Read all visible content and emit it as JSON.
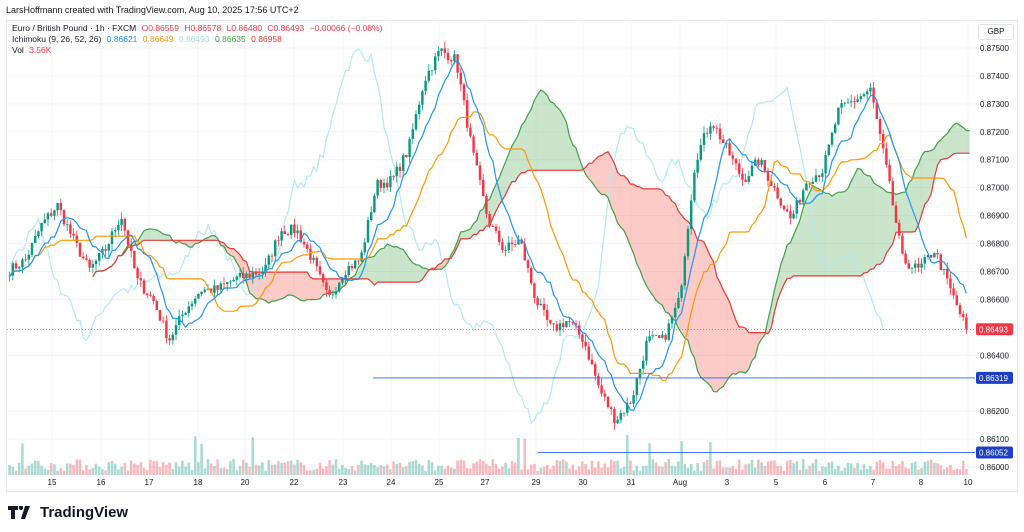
{
  "credit": "LarsHoffmann created with TradingView.com, Aug 10, 2025 17:56 UTC+2",
  "legend": {
    "symbol": "Euro / British Pound · 1h · FXCM",
    "open": "O0.86559",
    "high": "H0.86578",
    "low": "L0.86480",
    "close": "C0.86493",
    "change": "−0.00066 (−0.08%)",
    "ichimoku_label": "Ichimoku (9, 26, 52, 26)",
    "ichimoku_values": [
      "0.86621",
      "0.86649",
      "0.86493",
      "0.86635",
      "0.86958"
    ],
    "vol_label": "Vol",
    "vol_value": "3.56K"
  },
  "currency": "GBP",
  "logo": "TradingView",
  "colors": {
    "up": "#089981",
    "down": "#f23645",
    "tenkan": "#2196f3",
    "kijun": "#ff9800",
    "lagging": "#b2ebf2",
    "spanA": "#43a047",
    "spanB": "#e53935",
    "line": "#2962ff"
  },
  "chart_data": {
    "type": "line",
    "title": "Euro / British Pound · 1h · FXCM",
    "ylabel": "GBP",
    "ylim": [
      0.8597,
      0.8756
    ],
    "y_ticks": [
      "0.87500",
      "0.87400",
      "0.87300",
      "0.87200",
      "0.87100",
      "0.87000",
      "0.86900",
      "0.86800",
      "0.86700",
      "0.86600",
      "0.86400",
      "0.86200",
      "0.86100",
      "0.86000"
    ],
    "x_ticks": [
      "15",
      "16",
      "17",
      "18",
      "20",
      "22",
      "23",
      "24",
      "25",
      "27",
      "29",
      "30",
      "31",
      "Aug",
      "3",
      "5",
      "6",
      "7",
      "8",
      "10"
    ],
    "close_path": [
      0.86705,
      0.86741,
      0.86866,
      0.86938,
      0.86813,
      0.86705,
      0.86777,
      0.86902,
      0.86669,
      0.86598,
      0.86455,
      0.86562,
      0.86634,
      0.86634,
      0.86669,
      0.86687,
      0.86705,
      0.86848,
      0.86848,
      0.86741,
      0.86598,
      0.86705,
      0.86741,
      0.8701,
      0.87027,
      0.87135,
      0.87385,
      0.87493,
      0.87457,
      0.87135,
      0.86884,
      0.86777,
      0.86813,
      0.86598,
      0.8649,
      0.86526,
      0.86455,
      0.86276,
      0.86168,
      0.8624,
      0.86455,
      0.86455,
      0.86598,
      0.87099,
      0.87242,
      0.87135,
      0.87027,
      0.87099,
      0.86992,
      0.86884,
      0.87027,
      0.87063,
      0.87278,
      0.87314,
      0.8735,
      0.87063,
      0.86741,
      0.86705,
      0.86777,
      0.86634,
      0.86493
    ],
    "price_labels": [
      {
        "value": 0.86493,
        "text": "0.86493",
        "kind": "last"
      },
      {
        "value": 0.86319,
        "text": "0.86319",
        "kind": "hline"
      },
      {
        "value": 0.86052,
        "text": "0.86052",
        "kind": "hline"
      }
    ]
  }
}
